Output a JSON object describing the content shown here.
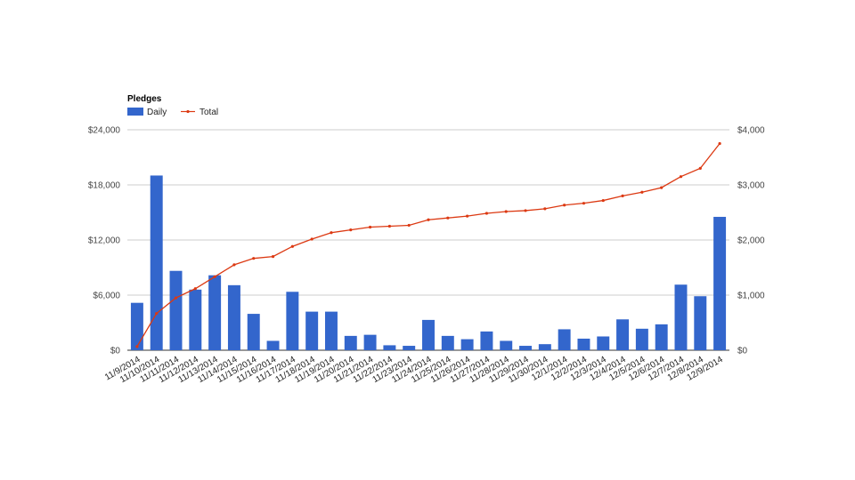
{
  "chart_data": {
    "type": "bar",
    "title": "Pledges",
    "categories": [
      "11/9/2014",
      "11/10/2014",
      "11/11/2014",
      "11/12/2014",
      "11/13/2014",
      "11/14/2014",
      "11/15/2014",
      "11/16/2014",
      "11/17/2014",
      "11/18/2014",
      "11/19/2014",
      "11/20/2014",
      "11/21/2014",
      "11/22/2014",
      "11/23/2014",
      "11/24/2014",
      "11/25/2014",
      "11/26/2014",
      "11/27/2014",
      "11/28/2014",
      "11/29/2014",
      "11/30/2014",
      "12/1/2014",
      "12/2/2014",
      "12/3/2014",
      "12/4/2014",
      "12/5/2014",
      "12/6/2014",
      "12/7/2014",
      "12/8/2014",
      "12/9/2014"
    ],
    "series": [
      {
        "name": "Daily",
        "type": "bar",
        "axis": "right",
        "color": "#3366cc",
        "values": [
          860,
          3170,
          1440,
          1100,
          1360,
          1180,
          660,
          170,
          1060,
          700,
          700,
          260,
          280,
          90,
          80,
          550,
          260,
          200,
          340,
          170,
          80,
          110,
          380,
          210,
          250,
          560,
          390,
          470,
          1190,
          980,
          2420
        ]
      },
      {
        "name": "Total",
        "type": "line",
        "axis": "left",
        "color": "#dc3912",
        "values": [
          400,
          4000,
          5700,
          6700,
          8000,
          9300,
          10000,
          10200,
          11300,
          12100,
          12800,
          13100,
          13400,
          13500,
          13600,
          14200,
          14400,
          14600,
          14900,
          15100,
          15200,
          15400,
          15800,
          16000,
          16300,
          16800,
          17200,
          17700,
          18900,
          19800,
          22500
        ]
      }
    ],
    "left_axis": {
      "ticks": [
        "$0",
        "$6,000",
        "$12,000",
        "$18,000",
        "$24,000"
      ],
      "range": [
        0,
        24000
      ]
    },
    "right_axis": {
      "ticks": [
        "$0",
        "$1,000",
        "$2,000",
        "$3,000",
        "$4,000"
      ],
      "range": [
        0,
        4000
      ]
    },
    "grid": true,
    "legend_position": "top-left"
  }
}
